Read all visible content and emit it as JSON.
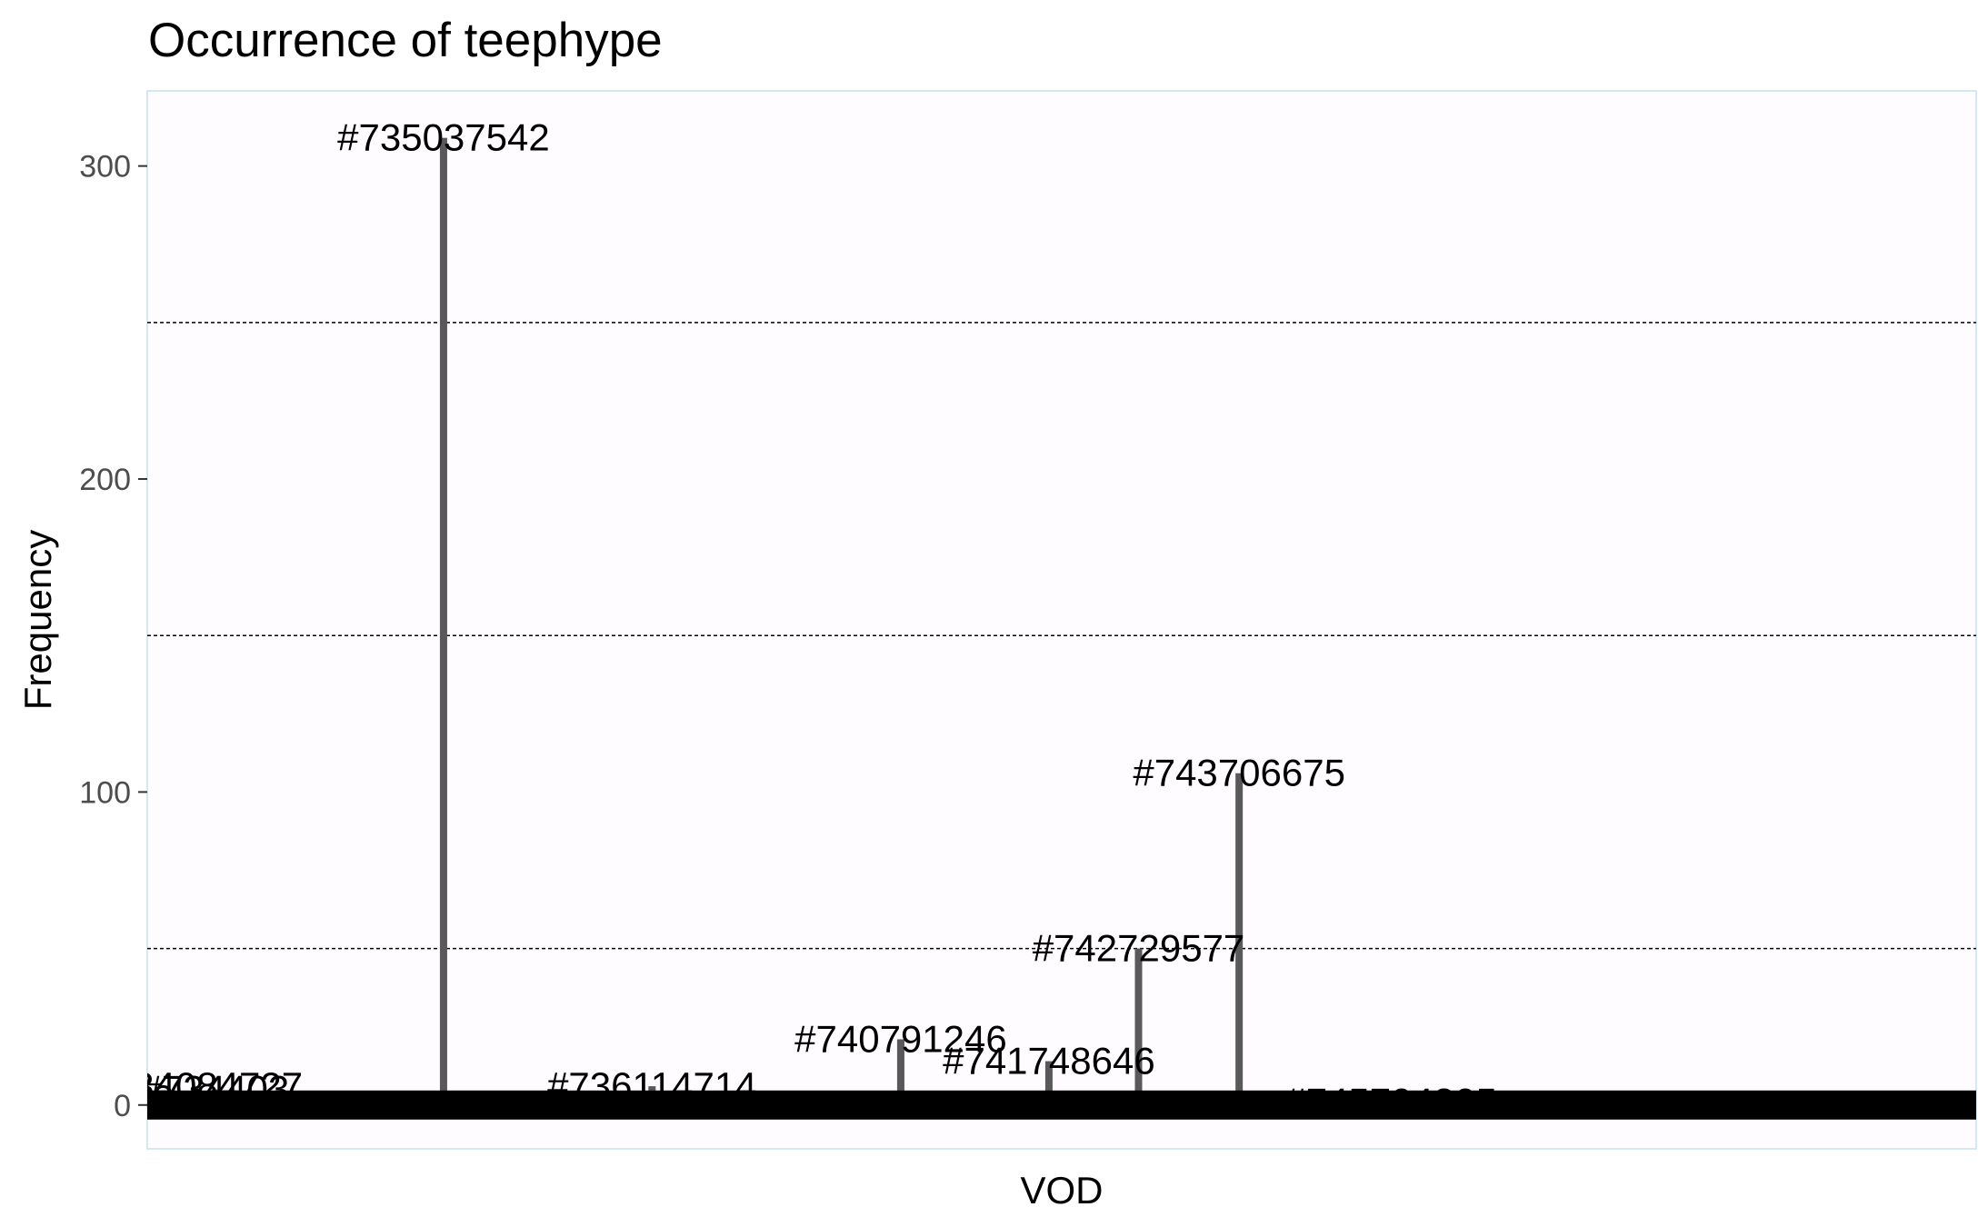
{
  "chart_data": {
    "type": "bar",
    "title": "Occurrence of teephype",
    "xlabel": "VOD",
    "ylabel": "Frequency",
    "ylim": [
      -14,
      324
    ],
    "yticks": [
      0,
      100,
      200,
      300
    ],
    "grid": true,
    "legend": "none",
    "colors": {
      "bar": "#595959",
      "panel": "#fefcff",
      "border": "#c6e2ee",
      "grid_major": "#000000",
      "baseline": "#000000"
    },
    "categories": [
      "#733...",
      "#734084727",
      "#734403",
      "#735037542",
      "#736114714",
      "#740791246",
      "#741748646",
      "#742729577",
      "#743706675",
      "#745704305"
    ],
    "values": [
      2,
      6,
      5,
      309,
      6,
      21,
      14,
      50,
      106,
      1
    ],
    "x": [
      0.0,
      0.027,
      0.037,
      0.162,
      0.276,
      0.412,
      0.493,
      0.542,
      0.597,
      0.68
    ]
  }
}
